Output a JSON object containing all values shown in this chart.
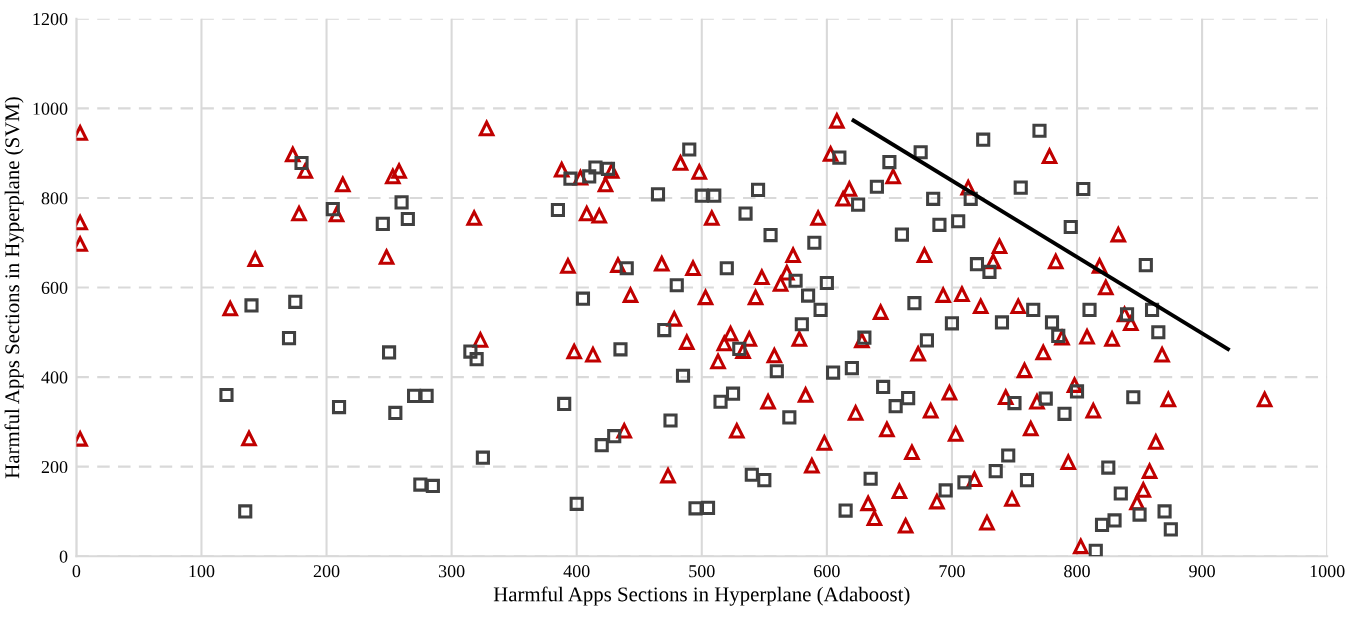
{
  "chart_data": {
    "type": "scatter",
    "xlabel": "Harmful Apps Sections in Hyperplane (Adaboost)",
    "ylabel": "Harmful Apps Sections in Hyperplane (SVM)",
    "xlim": [
      0,
      1000
    ],
    "ylim": [
      0,
      1200
    ],
    "xticks": [
      0,
      100,
      200,
      300,
      400,
      500,
      600,
      700,
      800,
      900,
      1000
    ],
    "yticks": [
      0,
      200,
      400,
      600,
      800,
      1000,
      1200
    ],
    "grid": true,
    "series": [
      {
        "marker": "triangle",
        "color": "#c00000",
        "x": [
          3,
          3,
          3,
          3,
          123,
          138,
          143,
          173,
          178,
          183,
          208,
          213,
          248,
          253,
          258,
          318,
          323,
          328,
          388,
          393,
          398,
          403,
          408,
          413,
          418,
          423,
          428,
          433,
          438,
          443,
          468,
          473,
          478,
          483,
          488,
          493,
          498,
          503,
          508,
          513,
          518,
          523,
          528,
          533,
          538,
          543,
          548,
          553,
          558,
          563,
          568,
          573,
          578,
          583,
          588,
          593,
          598,
          603,
          608,
          613,
          618,
          623,
          628,
          633,
          638,
          643,
          648,
          653,
          658,
          663,
          668,
          673,
          678,
          683,
          688,
          693,
          698,
          703,
          708,
          713,
          718,
          723,
          728,
          733,
          738,
          743,
          748,
          753,
          758,
          763,
          768,
          773,
          778,
          783,
          788,
          793,
          798,
          803,
          808,
          813,
          818,
          823,
          828,
          833,
          838,
          843,
          848,
          853,
          858,
          863,
          868,
          873,
          950
        ],
        "values": [
          945,
          745,
          697,
          262,
          553,
          263,
          663,
          897,
          765,
          860,
          763,
          830,
          668,
          848,
          860,
          755,
          483,
          955,
          863,
          648,
          457,
          845,
          765,
          450,
          760,
          830,
          860,
          650,
          280,
          583,
          653,
          180,
          530,
          878,
          478,
          643,
          858,
          578,
          755,
          435,
          475,
          497,
          280,
          458,
          485,
          578,
          623,
          345,
          448,
          608,
          633,
          672,
          485,
          360,
          202,
          755,
          253,
          898,
          972,
          798,
          820,
          320,
          482,
          118,
          85,
          545,
          283,
          848,
          145,
          68,
          232,
          452,
          672,
          325,
          122,
          583,
          365,
          273,
          585,
          823,
          172,
          558,
          75,
          658,
          692,
          355,
          128,
          558,
          415,
          285,
          345,
          455,
          893,
          658,
          488,
          210,
          382,
          22,
          490,
          325,
          648,
          600,
          485,
          718,
          540,
          520,
          120,
          148,
          190,
          255,
          450,
          350,
          350
        ]
      },
      {
        "marker": "square",
        "color": "#404040",
        "x": [
          120,
          135,
          140,
          170,
          175,
          180,
          205,
          210,
          245,
          250,
          255,
          260,
          265,
          270,
          275,
          280,
          285,
          315,
          320,
          325,
          385,
          390,
          395,
          400,
          405,
          410,
          415,
          420,
          425,
          430,
          435,
          440,
          465,
          470,
          475,
          480,
          485,
          490,
          495,
          500,
          505,
          510,
          515,
          520,
          525,
          530,
          535,
          540,
          545,
          550,
          555,
          560,
          570,
          575,
          580,
          585,
          590,
          595,
          600,
          605,
          610,
          615,
          620,
          625,
          630,
          635,
          640,
          645,
          650,
          655,
          660,
          665,
          670,
          675,
          680,
          685,
          690,
          695,
          700,
          705,
          710,
          715,
          720,
          725,
          730,
          735,
          740,
          745,
          750,
          755,
          760,
          765,
          770,
          775,
          780,
          785,
          790,
          795,
          800,
          805,
          810,
          815,
          820,
          825,
          830,
          835,
          840,
          845,
          850,
          855,
          860,
          865,
          870,
          875
        ],
        "values": [
          360,
          100,
          560,
          487,
          568,
          878,
          775,
          333,
          742,
          455,
          320,
          790,
          753,
          358,
          160,
          358,
          157,
          457,
          440,
          220,
          773,
          340,
          843,
          117,
          575,
          848,
          868,
          248,
          865,
          268,
          462,
          643,
          808,
          505,
          303,
          605,
          403,
          908,
          107,
          805,
          108,
          805,
          345,
          643,
          363,
          463,
          765,
          182,
          818,
          170,
          717,
          413,
          310,
          615,
          518,
          582,
          700,
          550,
          610,
          410,
          890,
          102,
          420,
          785,
          488,
          173,
          825,
          378,
          880,
          335,
          718,
          353,
          565,
          902,
          482,
          798,
          740,
          147,
          520,
          748,
          165,
          798,
          652,
          930,
          635,
          190,
          522,
          225,
          342,
          823,
          170,
          550,
          950,
          352,
          522,
          492,
          318,
          735,
          368,
          820,
          550,
          12,
          70,
          198,
          80,
          140,
          540,
          355,
          93,
          650,
          550,
          500,
          100,
          60
        ]
      },
      {
        "type": "line",
        "color": "#000000",
        "marker": "none",
        "line_style": "solid",
        "x": [
          620,
          922
        ],
        "values": [
          975,
          460
        ]
      }
    ]
  }
}
